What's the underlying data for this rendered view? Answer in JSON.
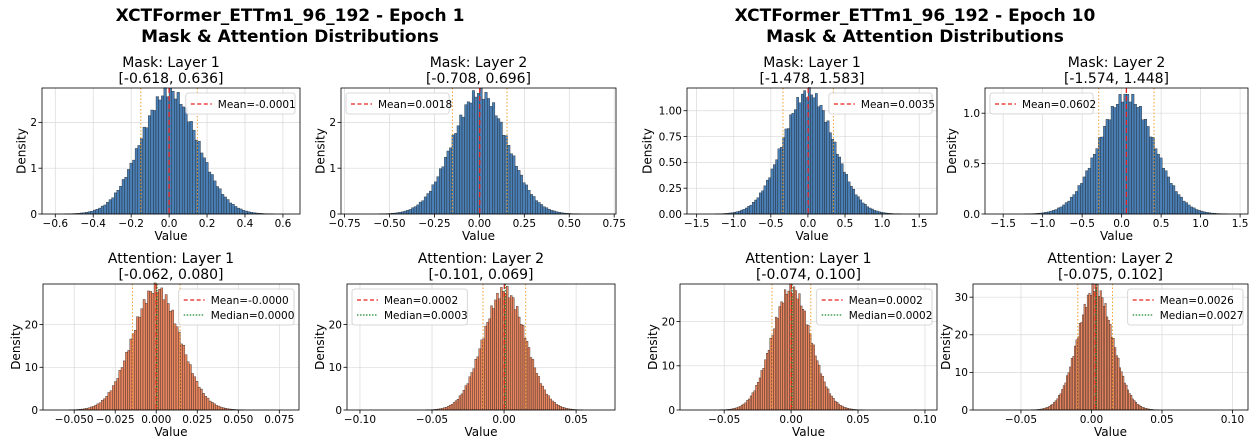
{
  "figures": [
    {
      "title_line1": "XCTFormer_ETTm1_96_192 - Epoch 1",
      "title_line2": "Mask & Attention Distributions"
    },
    {
      "title_line1": "XCTFormer_ETTm1_96_192 - Epoch 10",
      "title_line2": "Mask & Attention Distributions"
    }
  ],
  "colors": {
    "mask_bar": "#4a7fb5",
    "attention_bar": "#e8855f",
    "bar_edge": "#1a1a1a",
    "mean_line": "#e8201c",
    "median_line": "#1a8a2a",
    "std_line": "#f0a030",
    "grid": "#d9d9d9"
  },
  "chart_data": [
    {
      "type": "bar",
      "histogram": true,
      "figure": 0,
      "row": 0,
      "title_line1": "Mask: Layer 1",
      "title_line2": "[-0.618, 0.636]",
      "xlabel": "Value",
      "ylabel": "Density",
      "xlim": [
        -0.67,
        0.69
      ],
      "ylim": [
        0,
        2.75
      ],
      "xticks": [
        -0.6,
        -0.4,
        -0.2,
        0.0,
        0.2,
        0.4,
        0.6
      ],
      "xtick_labels": [
        "−0.6",
        "−0.4",
        "−0.2",
        "0.0",
        "0.2",
        "0.4",
        "0.6"
      ],
      "yticks": [
        0,
        1,
        2
      ],
      "ytick_labels": [
        "0",
        "1",
        "2"
      ],
      "mean": -0.0001,
      "std": 0.149,
      "peak": 2.68,
      "median": null,
      "legend": [
        "Mean=-0.0001"
      ],
      "legend_loc": "upper right",
      "bar_color": "mask"
    },
    {
      "type": "bar",
      "histogram": true,
      "figure": 0,
      "row": 0,
      "title_line1": "Mask: Layer 2",
      "title_line2": "[-0.708, 0.696]",
      "xlabel": "Value",
      "ylabel": "Density",
      "xlim": [
        -0.77,
        0.76
      ],
      "ylim": [
        0,
        2.75
      ],
      "xticks": [
        -0.75,
        -0.5,
        -0.25,
        0.0,
        0.25,
        0.5,
        0.75
      ],
      "xtick_labels": [
        "−0.75",
        "−0.50",
        "−0.25",
        "0.00",
        "0.25",
        "0.50",
        "0.75"
      ],
      "yticks": [
        0,
        1,
        2
      ],
      "ytick_labels": [
        "0",
        "1",
        "2"
      ],
      "mean": 0.0018,
      "std": 0.152,
      "peak": 2.65,
      "median": null,
      "legend": [
        "Mean=0.0018"
      ],
      "legend_loc": "upper left",
      "bar_color": "mask"
    },
    {
      "type": "bar",
      "histogram": true,
      "figure": 0,
      "row": 1,
      "title_line1": "Attention: Layer 1",
      "title_line2": "[-0.062, 0.080]",
      "xlabel": "Value",
      "ylabel": "Density",
      "xlim": [
        -0.069,
        0.087
      ],
      "ylim": [
        0,
        29.5
      ],
      "xticks": [
        -0.05,
        -0.025,
        0.0,
        0.025,
        0.05,
        0.075
      ],
      "xtick_labels": [
        "−0.050",
        "−0.025",
        "0.000",
        "0.025",
        "0.050",
        "0.075"
      ],
      "yticks": [
        0,
        10,
        20
      ],
      "ytick_labels": [
        "0",
        "10",
        "20"
      ],
      "mean": -0.0,
      "std": 0.0145,
      "peak": 28.5,
      "median": 0.0,
      "legend": [
        "Mean=-0.0000",
        "Median=0.0000"
      ],
      "legend_loc": "upper right",
      "bar_color": "attention"
    },
    {
      "type": "bar",
      "histogram": true,
      "figure": 0,
      "row": 1,
      "title_line1": "Attention: Layer 2",
      "title_line2": "[-0.101, 0.069]",
      "xlabel": "Value",
      "ylabel": "Density",
      "xlim": [
        -0.109,
        0.077
      ],
      "ylim": [
        0,
        29.5
      ],
      "xticks": [
        -0.1,
        -0.05,
        0.0,
        0.05
      ],
      "xtick_labels": [
        "−0.10",
        "−0.05",
        "0.00",
        "0.05"
      ],
      "yticks": [
        0,
        10,
        20
      ],
      "ytick_labels": [
        "0",
        "10",
        "20"
      ],
      "mean": 0.0002,
      "std": 0.0148,
      "peak": 28.0,
      "median": 0.0003,
      "legend": [
        "Mean=0.0002",
        "Median=0.0003"
      ],
      "legend_loc": "upper left",
      "bar_color": "attention"
    },
    {
      "type": "bar",
      "histogram": true,
      "figure": 1,
      "row": 0,
      "title_line1": "Mask: Layer 1",
      "title_line2": "[-1.478, 1.583]",
      "xlabel": "Value",
      "ylabel": "Density",
      "xlim": [
        -1.63,
        1.74
      ],
      "ylim": [
        0,
        1.22
      ],
      "xticks": [
        -1.5,
        -1.0,
        -0.5,
        0.0,
        0.5,
        1.0,
        1.5
      ],
      "xtick_labels": [
        "−1.5",
        "−1.0",
        "−0.5",
        "0.0",
        "0.5",
        "1.0",
        "1.5"
      ],
      "yticks": [
        0,
        0.25,
        0.5,
        0.75,
        1.0
      ],
      "ytick_labels": [
        "0.00",
        "0.25",
        "0.50",
        "0.75",
        "1.00"
      ],
      "mean": 0.0035,
      "std": 0.34,
      "peak": 1.18,
      "median": null,
      "legend": [
        "Mean=0.0035"
      ],
      "legend_loc": "upper right",
      "bar_color": "mask"
    },
    {
      "type": "bar",
      "histogram": true,
      "figure": 1,
      "row": 0,
      "title_line1": "Mask: Layer 2",
      "title_line2": "[-1.574, 1.448]",
      "xlabel": "Value",
      "ylabel": "Density",
      "xlim": [
        -1.73,
        1.6
      ],
      "ylim": [
        0,
        1.25
      ],
      "xticks": [
        -1.5,
        -1.0,
        -0.5,
        0.0,
        0.5,
        1.0,
        1.5
      ],
      "xtick_labels": [
        "−1.5",
        "−1.0",
        "−0.5",
        "0.0",
        "0.5",
        "1.0",
        "1.5"
      ],
      "yticks": [
        0,
        0.5,
        1.0
      ],
      "ytick_labels": [
        "0.0",
        "0.5",
        "1.0"
      ],
      "mean": 0.0602,
      "std": 0.35,
      "peak": 1.17,
      "median": null,
      "legend": [
        "Mean=0.0602"
      ],
      "legend_loc": "upper left",
      "bar_color": "mask"
    },
    {
      "type": "bar",
      "histogram": true,
      "figure": 1,
      "row": 1,
      "title_line1": "Attention: Layer 1",
      "title_line2": "[-0.074, 0.100]",
      "xlabel": "Value",
      "ylabel": "Density",
      "xlim": [
        -0.083,
        0.109
      ],
      "ylim": [
        0,
        28.5
      ],
      "xticks": [
        -0.05,
        0.0,
        0.05,
        0.1
      ],
      "xtick_labels": [
        "−0.05",
        "0.00",
        "0.05",
        "0.10"
      ],
      "yticks": [
        0,
        10,
        20
      ],
      "ytick_labels": [
        "0",
        "10",
        "20"
      ],
      "mean": 0.0002,
      "std": 0.0145,
      "peak": 27.5,
      "median": 0.0002,
      "legend": [
        "Mean=0.0002",
        "Median=0.0002"
      ],
      "legend_loc": "upper right",
      "bar_color": "attention"
    },
    {
      "type": "bar",
      "histogram": true,
      "figure": 1,
      "row": 1,
      "title_line1": "Attention: Layer 2",
      "title_line2": "[-0.075, 0.102]",
      "xlabel": "Value",
      "ylabel": "Density",
      "xlim": [
        -0.084,
        0.111
      ],
      "ylim": [
        0,
        33.5
      ],
      "xticks": [
        -0.05,
        0.0,
        0.05,
        0.1
      ],
      "xtick_labels": [
        "−0.05",
        "0.00",
        "0.05",
        "0.10"
      ],
      "yticks": [
        0,
        10,
        20,
        30
      ],
      "ytick_labels": [
        "0",
        "10",
        "20",
        "30"
      ],
      "mean": 0.0026,
      "std": 0.0123,
      "peak": 32.5,
      "median": 0.0027,
      "legend": [
        "Mean=0.0026",
        "Median=0.0027"
      ],
      "legend_loc": "upper right",
      "bar_color": "attention"
    }
  ]
}
